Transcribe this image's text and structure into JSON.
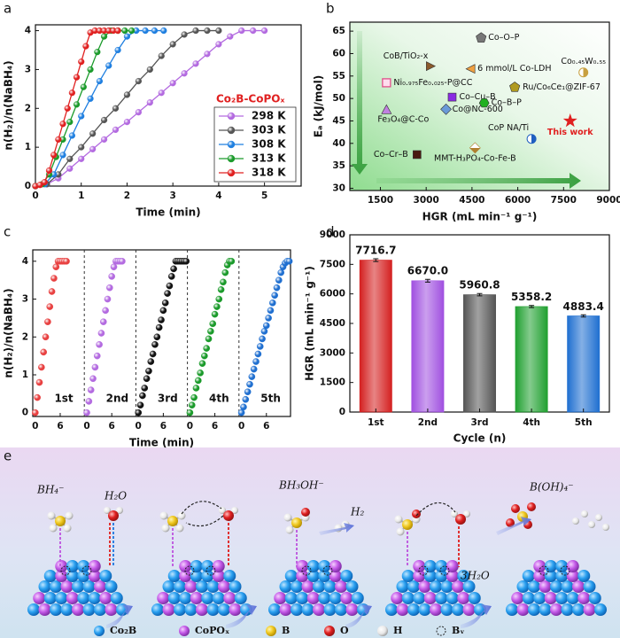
{
  "panel_labels": [
    "a",
    "b",
    "c",
    "d",
    "e"
  ],
  "chart_data": [
    {
      "type": "line",
      "xlabel": "Time (min)",
      "ylabel": "n(H₂)/n(NaBH₄)",
      "legend_title": "Co₂B-CoPOₓ",
      "legend": "lower right",
      "xlim": [
        0,
        5.8
      ],
      "ylim": [
        0,
        4.15
      ],
      "xticks": [
        0,
        1,
        2,
        3,
        4,
        5
      ],
      "yticks": [
        0,
        1,
        2,
        3,
        4
      ],
      "series": [
        {
          "name": "298 K",
          "color": "#b36ae0",
          "x": [
            0,
            0.25,
            0.5,
            0.75,
            1,
            1.25,
            1.5,
            1.75,
            2,
            2.25,
            2.5,
            2.75,
            3,
            3.25,
            3.5,
            3.75,
            4,
            4.25,
            4.5,
            4.75,
            5
          ],
          "values": [
            0,
            0.05,
            0.2,
            0.45,
            0.7,
            0.95,
            1.2,
            1.45,
            1.65,
            1.9,
            2.15,
            2.4,
            2.65,
            2.9,
            3.15,
            3.4,
            3.65,
            3.85,
            4,
            4,
            4
          ]
        },
        {
          "name": "303 K",
          "color": "#555555",
          "x": [
            0,
            0.25,
            0.5,
            0.75,
            1,
            1.25,
            1.5,
            1.75,
            2,
            2.25,
            2.5,
            2.75,
            3,
            3.25,
            3.5,
            3.75,
            4
          ],
          "values": [
            0,
            0.05,
            0.3,
            0.7,
            1,
            1.35,
            1.7,
            2,
            2.35,
            2.7,
            3,
            3.35,
            3.65,
            3.9,
            4,
            4,
            4
          ]
        },
        {
          "name": "308 K",
          "color": "#1f7fe0",
          "x": [
            0,
            0.2,
            0.4,
            0.6,
            0.8,
            1,
            1.2,
            1.4,
            1.6,
            1.8,
            2,
            2.2,
            2.4,
            2.6,
            2.8
          ],
          "values": [
            0,
            0.05,
            0.3,
            0.8,
            1.3,
            1.8,
            2.25,
            2.7,
            3.1,
            3.5,
            3.85,
            4,
            4,
            4,
            4
          ]
        },
        {
          "name": "313 K",
          "color": "#1a9a2a",
          "x": [
            0,
            0.15,
            0.3,
            0.45,
            0.6,
            0.75,
            0.9,
            1.05,
            1.2,
            1.35,
            1.5,
            1.65,
            1.8,
            1.95,
            2.1
          ],
          "values": [
            0,
            0.05,
            0.3,
            0.75,
            1.2,
            1.65,
            2.1,
            2.55,
            3,
            3.45,
            3.85,
            4,
            4,
            4,
            4
          ]
        },
        {
          "name": "318 K",
          "color": "#e02020",
          "x": [
            0,
            0.1,
            0.2,
            0.3,
            0.4,
            0.5,
            0.6,
            0.7,
            0.8,
            0.9,
            1,
            1.1,
            1.2,
            1.3,
            1.4,
            1.5,
            1.6,
            1.7,
            1.8
          ],
          "values": [
            0,
            0.03,
            0.1,
            0.4,
            0.8,
            1.2,
            1.6,
            2,
            2.4,
            2.8,
            3.2,
            3.6,
            3.95,
            4,
            4,
            4,
            4,
            4,
            4
          ]
        }
      ]
    },
    {
      "type": "scatter",
      "xlabel": "HGR (mL min⁻¹ g⁻¹)",
      "ylabel": "Eₐ (kJ/mol)",
      "xlim": [
        500,
        9000
      ],
      "ylim": [
        29.5,
        67
      ],
      "xticks": [
        1500,
        3000,
        4500,
        6000,
        7500,
        9000
      ],
      "yticks": [
        30,
        35,
        40,
        45,
        50,
        55,
        60,
        65
      ],
      "series": [
        {
          "name": "Co–O–P",
          "color": "#777777",
          "marker": "pentagon",
          "x": [
            4800
          ],
          "values": [
            63.5
          ]
        },
        {
          "name": "CoB/TiO₂-x",
          "color": "#8b5a2b",
          "marker": "triangle-right",
          "x": [
            3150
          ],
          "values": [
            57.2
          ]
        },
        {
          "name": "6 mmol/L Co-LDH",
          "color": "#f0a040",
          "marker": "triangle-left",
          "x": [
            4450
          ],
          "values": [
            56.6
          ]
        },
        {
          "name": "Co₀.₄₅W₀.₅₅",
          "color": "#c8a040",
          "marker": "half-circle",
          "x": [
            8150
          ],
          "values": [
            55.8
          ]
        },
        {
          "name": "Ni₀.₉₇₅Fe₀.₀₂₅-P@CC",
          "color": "#e0508a",
          "marker": "square-open",
          "x": [
            1700
          ],
          "values": [
            53.5
          ]
        },
        {
          "name": "Ru/Co₆Ce₁@ZIF-67",
          "color": "#b09a20",
          "marker": "pentagon",
          "x": [
            5900
          ],
          "values": [
            52.5
          ]
        },
        {
          "name": "Co–Cu–B",
          "color": "#8a2be2",
          "marker": "square",
          "x": [
            3850
          ],
          "values": [
            50.3
          ]
        },
        {
          "name": "Co@NC-600",
          "color": "#6a9ad8",
          "marker": "diamond",
          "x": [
            3650
          ],
          "values": [
            47.6
          ]
        },
        {
          "name": "Fe₃O₄@C-Co",
          "color": "#c080e0",
          "marker": "triangle-up",
          "x": [
            1700
          ],
          "values": [
            47.5
          ]
        },
        {
          "name": "Co–B–P",
          "color": "#20b020",
          "marker": "hexagon",
          "x": [
            4900
          ],
          "values": [
            49
          ]
        },
        {
          "name": "CoP NA/Ti",
          "color": "#1f5fc0",
          "marker": "half-circle",
          "x": [
            6450
          ],
          "values": [
            41
          ]
        },
        {
          "name": "This work",
          "color": "#e02020",
          "marker": "star",
          "x": [
            7716.7
          ],
          "values": [
            45
          ]
        },
        {
          "name": "MMT-H₃PO₄-Co-Fe-B",
          "color": "#b08030",
          "marker": "diamond-half",
          "x": [
            4600
          ],
          "values": [
            39
          ]
        },
        {
          "name": "Co–Cr–B",
          "color": "#4a1a10",
          "marker": "square",
          "x": [
            2700
          ],
          "values": [
            37.5
          ]
        }
      ]
    },
    {
      "type": "line",
      "xlabel": "Time (min)",
      "ylabel": "n(H₂)/n(NaBH₄)",
      "xlim": [
        -0.6,
        11.8
      ],
      "ylim": [
        -0.1,
        4.3
      ],
      "xticks": [
        0,
        6
      ],
      "yticks": [
        0,
        1,
        2,
        3,
        4
      ],
      "series": [
        {
          "name": "1st",
          "color": "#e84040",
          "x": [
            0,
            0.5,
            1,
            1.5,
            2,
            2.5,
            3,
            3.5,
            4,
            4.5,
            5,
            5.5,
            6,
            6.5,
            7,
            7.5
          ],
          "values": [
            0,
            0.4,
            0.8,
            1.2,
            1.6,
            2,
            2.4,
            2.8,
            3.2,
            3.55,
            3.85,
            4,
            4,
            4,
            4,
            4
          ]
        },
        {
          "name": "2nd",
          "color": "#b36ae0",
          "x": [
            0,
            0.5,
            1,
            1.5,
            2,
            2.5,
            3,
            3.5,
            4,
            4.5,
            5,
            5.5,
            6,
            6.5,
            7,
            7.5,
            8,
            8.5
          ],
          "values": [
            0,
            0.3,
            0.6,
            0.9,
            1.2,
            1.5,
            1.8,
            2.1,
            2.4,
            2.7,
            3,
            3.3,
            3.6,
            3.85,
            4,
            4,
            4,
            4
          ]
        },
        {
          "name": "3rd",
          "color": "#111111",
          "x": [
            0,
            0.5,
            1,
            1.5,
            2,
            2.5,
            3,
            3.5,
            4,
            4.5,
            5,
            5.5,
            6,
            6.5,
            7,
            7.5,
            8,
            8.5,
            9,
            9.5,
            10,
            10.5,
            11,
            11.5
          ],
          "values": [
            0,
            0.2,
            0.45,
            0.65,
            0.9,
            1.1,
            1.35,
            1.55,
            1.8,
            2,
            2.25,
            2.45,
            2.7,
            2.9,
            3.15,
            3.35,
            3.6,
            3.8,
            4,
            4,
            4,
            4,
            4,
            4
          ]
        },
        {
          "name": "4th",
          "color": "#1a9a2a",
          "x": [
            0,
            0.5,
            1,
            1.5,
            2,
            2.5,
            3,
            3.5,
            4,
            4.5,
            5,
            5.5,
            6,
            6.5,
            7,
            7.5,
            8,
            8.5,
            9,
            9.5,
            10
          ],
          "values": [
            0,
            0.2,
            0.4,
            0.65,
            0.85,
            1.05,
            1.3,
            1.5,
            1.7,
            1.95,
            2.15,
            2.35,
            2.6,
            2.8,
            3,
            3.25,
            3.45,
            3.7,
            3.9,
            4,
            4
          ]
        },
        {
          "name": "5th",
          "color": "#1f6fd0",
          "x": [
            0,
            0.5,
            1,
            1.5,
            2,
            2.5,
            3,
            3.5,
            4,
            4.5,
            5,
            5.5,
            6,
            6.5,
            7,
            7.5,
            8,
            8.5,
            9,
            9.5,
            10,
            10.5,
            11,
            11.5
          ],
          "values": [
            0,
            0.15,
            0.35,
            0.55,
            0.75,
            0.95,
            1.15,
            1.35,
            1.55,
            1.75,
            1.95,
            2.15,
            2.3,
            2.5,
            2.7,
            2.9,
            3.1,
            3.3,
            3.5,
            3.7,
            3.85,
            3.95,
            4,
            4
          ]
        }
      ]
    },
    {
      "type": "bar",
      "xlabel": "Cycle (n)",
      "ylabel": "HGR (mL min⁻¹ g⁻¹)",
      "categories": [
        "1st",
        "2nd",
        "3rd",
        "4th",
        "5th"
      ],
      "values": [
        7716.7,
        6670,
        5960.8,
        5358.2,
        4883.4
      ],
      "value_labels": [
        "7716.7",
        "6670.0",
        "5960.8",
        "5358.2",
        "4883.4"
      ],
      "errors": [
        70,
        70,
        60,
        55,
        55
      ],
      "colors": [
        "#d42020",
        "#a050e0",
        "#555555",
        "#20a030",
        "#1f6fd0"
      ],
      "ylim": [
        0,
        9000
      ],
      "yticks": [
        0,
        1500,
        3000,
        4500,
        6000,
        7500,
        9000
      ]
    }
  ],
  "scheme": {
    "species": [
      "BH₄⁻",
      "H₂O",
      "BH₃OH⁻",
      "H₂",
      "B(OH)₄⁻",
      "3H₂O"
    ],
    "legend": [
      "Co₂B",
      "CoPOₓ",
      "B",
      "O",
      "H",
      "Bᵥ"
    ]
  }
}
